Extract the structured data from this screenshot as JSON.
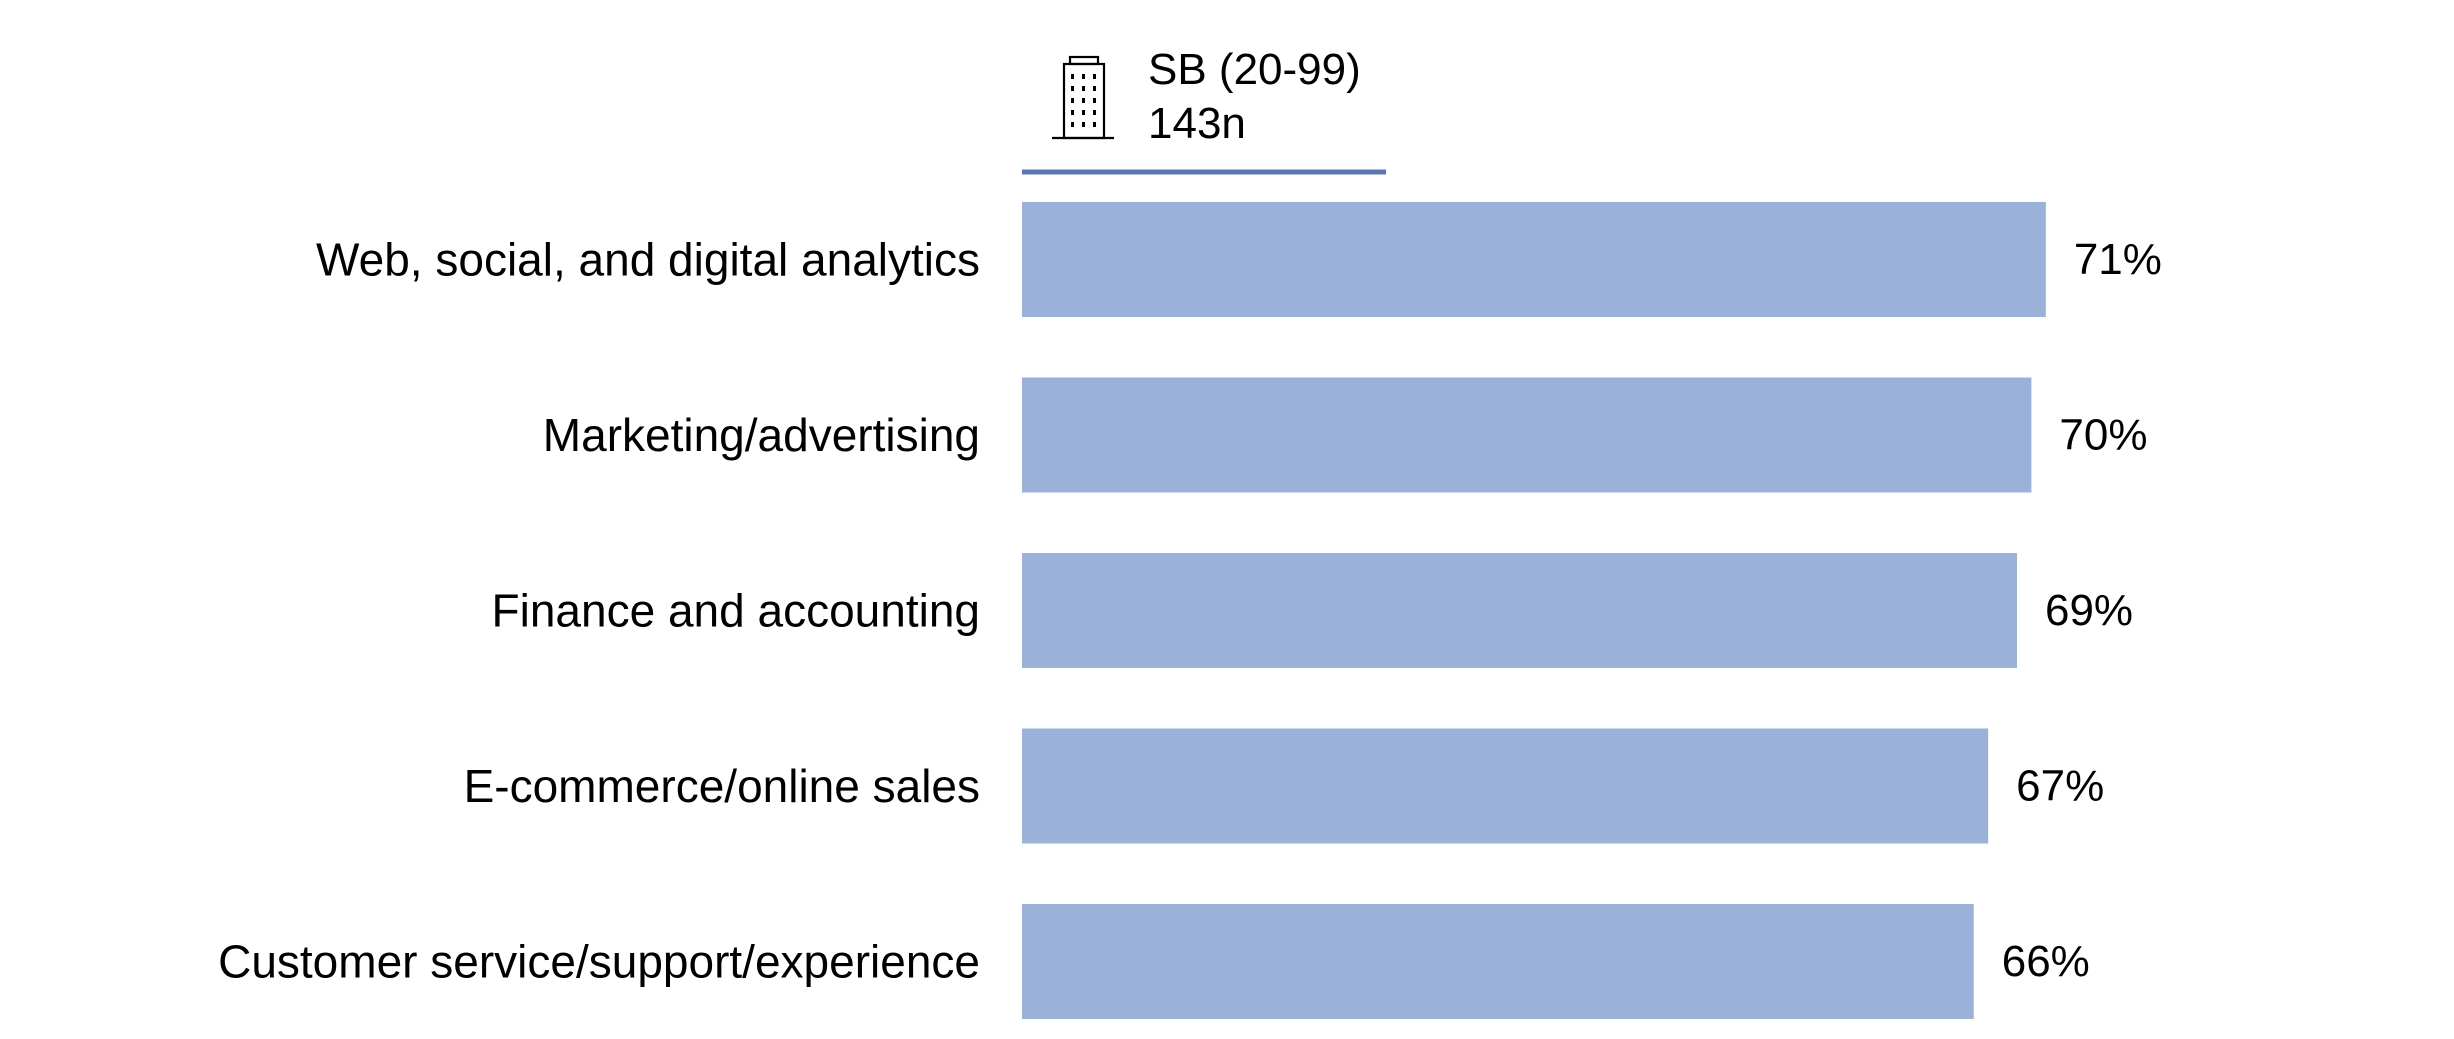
{
  "segment": {
    "name": "SB (20-99)",
    "sample": "143n",
    "icon": "office-building-icon",
    "underline_color": "#5677b8"
  },
  "chart_data": {
    "type": "bar",
    "orientation": "horizontal",
    "categories": [
      "Web, social, and digital analytics",
      "Marketing/advertising",
      "Finance and accounting",
      "E-commerce/online sales",
      "Customer service/support/experience"
    ],
    "values": [
      71,
      70,
      69,
      67,
      66
    ],
    "value_labels": [
      "71%",
      "70%",
      "69%",
      "67%",
      "66%"
    ],
    "unit": "%",
    "xlim": [
      0,
      100
    ],
    "bar_color": "#9ab1d9",
    "grid": false,
    "legend": "none"
  }
}
